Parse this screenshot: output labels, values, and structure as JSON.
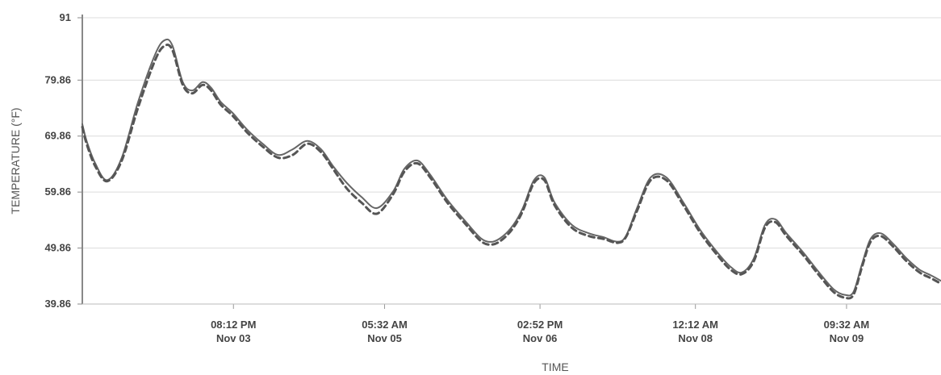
{
  "chart_data": {
    "type": "line",
    "xlabel": "TIME",
    "ylabel": "TEMPERATURE (°F)",
    "ylim": [
      39.86,
      91
    ],
    "y_ticks": [
      "39.86",
      "49.86",
      "59.86",
      "69.86",
      "79.86",
      "91"
    ],
    "y_tick_values": [
      39.86,
      49.86,
      59.86,
      69.86,
      79.86,
      91
    ],
    "xlim": [
      0,
      100
    ],
    "x_ticks": [
      {
        "x": 17.6,
        "time": "08:12 PM",
        "date": "Nov 03"
      },
      {
        "x": 35.2,
        "time": "05:32 AM",
        "date": "Nov 05"
      },
      {
        "x": 53.3,
        "time": "02:52 PM",
        "date": "Nov 06"
      },
      {
        "x": 71.4,
        "time": "12:12 AM",
        "date": "Nov 08"
      },
      {
        "x": 89.0,
        "time": "09:32 AM",
        "date": "Nov 09"
      }
    ],
    "grid": true,
    "series": [
      {
        "style": "solid",
        "color": "#666666",
        "x": [
          0,
          0.5,
          1.5,
          2.9,
          4.6,
          6.5,
          8.5,
          9.6,
          10.5,
          11.7,
          12.8,
          14.0,
          15.0,
          16.1,
          17.5,
          19.2,
          21.0,
          22.8,
          24.5,
          26.2,
          27.8,
          29.2,
          30.8,
          32.5,
          34.3,
          36.2,
          37.5,
          39.0,
          40.5,
          42.5,
          44.7,
          46.5,
          47.8,
          49.0,
          50.2,
          51.3,
          52.6,
          53.8,
          55.0,
          57.0,
          59.0,
          60.7,
          62.3,
          63.3,
          64.6,
          66.2,
          68.0,
          70.0,
          72.0,
          74.0,
          75.5,
          76.8,
          78.2,
          79.5,
          80.7,
          82.0,
          84.0,
          85.8,
          87.5,
          88.8,
          89.8,
          90.8,
          91.8,
          93.0,
          94.5,
          96.0,
          97.5,
          98.8,
          100
        ],
        "y": [
          72.0,
          69.0,
          65.0,
          62.0,
          66.0,
          76.0,
          84.5,
          87.0,
          86.0,
          79.5,
          78.0,
          79.5,
          78.5,
          76.0,
          74.0,
          71.0,
          68.5,
          66.5,
          67.5,
          69.0,
          67.5,
          64.5,
          61.5,
          59.0,
          57.0,
          60.0,
          64.0,
          65.5,
          63.0,
          58.5,
          54.5,
          51.5,
          51.0,
          52.0,
          54.0,
          57.0,
          62.0,
          62.5,
          58.0,
          54.0,
          52.5,
          51.8,
          51.0,
          52.0,
          57.0,
          62.5,
          62.5,
          58.0,
          53.0,
          49.0,
          46.5,
          45.5,
          48.0,
          54.0,
          55.0,
          52.5,
          49.0,
          45.5,
          42.5,
          41.5,
          42.0,
          47.0,
          51.5,
          52.5,
          50.5,
          48.0,
          46.0,
          45.0,
          44.0
        ]
      },
      {
        "style": "dashed",
        "color": "#555555",
        "x": [
          0,
          0.5,
          1.5,
          2.9,
          4.6,
          6.5,
          8.5,
          9.6,
          10.5,
          11.7,
          12.8,
          14.0,
          15.0,
          16.1,
          17.5,
          19.2,
          21.0,
          22.8,
          24.5,
          26.2,
          27.8,
          29.2,
          30.8,
          32.5,
          34.3,
          36.2,
          37.5,
          39.0,
          40.5,
          42.5,
          44.7,
          46.5,
          47.8,
          49.0,
          50.2,
          51.3,
          52.6,
          53.8,
          55.0,
          57.0,
          59.0,
          60.7,
          62.3,
          63.3,
          64.6,
          66.2,
          68.0,
          70.0,
          72.0,
          74.0,
          75.5,
          76.8,
          78.2,
          79.5,
          80.7,
          82.0,
          84.0,
          85.8,
          87.5,
          88.8,
          89.8,
          90.8,
          91.8,
          93.0,
          94.5,
          96.0,
          97.5,
          98.8,
          100
        ],
        "y": [
          71.5,
          68.5,
          64.5,
          61.8,
          65.5,
          75.0,
          83.5,
          86.0,
          85.2,
          79.0,
          77.5,
          79.0,
          78.0,
          75.5,
          73.5,
          70.5,
          68.0,
          66.0,
          66.5,
          68.5,
          67.0,
          64.0,
          60.5,
          58.0,
          56.0,
          59.5,
          63.5,
          65.0,
          62.5,
          58.0,
          54.0,
          51.0,
          50.5,
          51.5,
          53.5,
          56.5,
          61.5,
          62.0,
          57.5,
          53.5,
          52.0,
          51.5,
          50.8,
          51.8,
          56.5,
          62.0,
          62.0,
          57.5,
          52.5,
          48.5,
          46.0,
          45.2,
          47.5,
          53.5,
          54.5,
          52.0,
          48.5,
          45.0,
          42.0,
          41.0,
          41.5,
          46.5,
          51.0,
          52.0,
          50.0,
          47.5,
          45.5,
          44.5,
          43.5
        ]
      }
    ]
  }
}
